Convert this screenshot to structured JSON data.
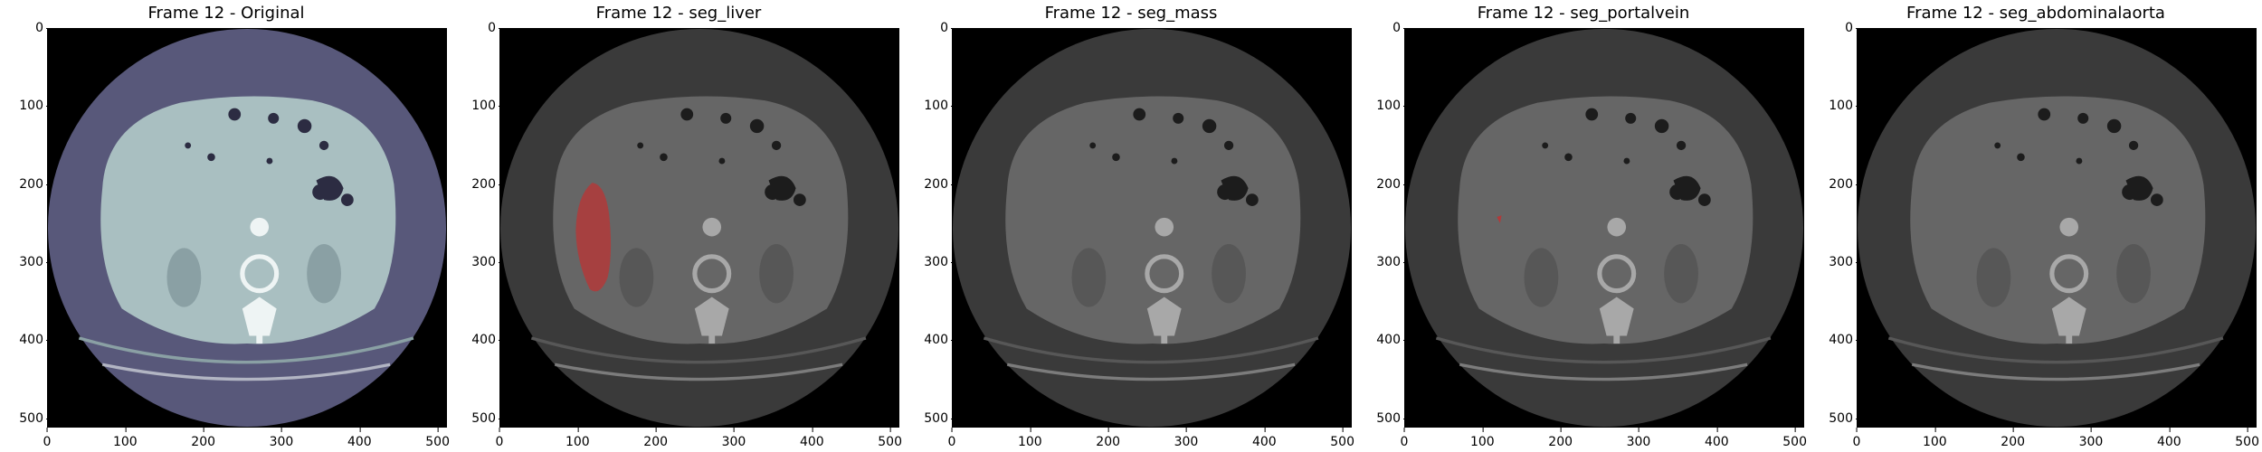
{
  "panels": [
    {
      "title": "Frame 12 - Original",
      "mode": "original",
      "overlay": "none"
    },
    {
      "title": "Frame 12 - seg_liver",
      "mode": "gray",
      "overlay": "liver"
    },
    {
      "title": "Frame 12 - seg_mass",
      "mode": "gray",
      "overlay": "none"
    },
    {
      "title": "Frame 12 - seg_portalvein",
      "mode": "gray",
      "overlay": "portalvein"
    },
    {
      "title": "Frame 12 - seg_abdominalaorta",
      "mode": "gray",
      "overlay": "none"
    }
  ],
  "axes": {
    "x_ticks": [
      "0",
      "100",
      "200",
      "300",
      "400",
      "500"
    ],
    "y_ticks": [
      "0",
      "100",
      "200",
      "300",
      "400",
      "500"
    ],
    "range": [
      0,
      512
    ]
  },
  "colors": {
    "original_bg": "#58587a",
    "original_body": "#a9bfc1",
    "gray_bg": "#3a3a3a",
    "gray_body": "#666666",
    "overlay": "#b23a3a"
  }
}
